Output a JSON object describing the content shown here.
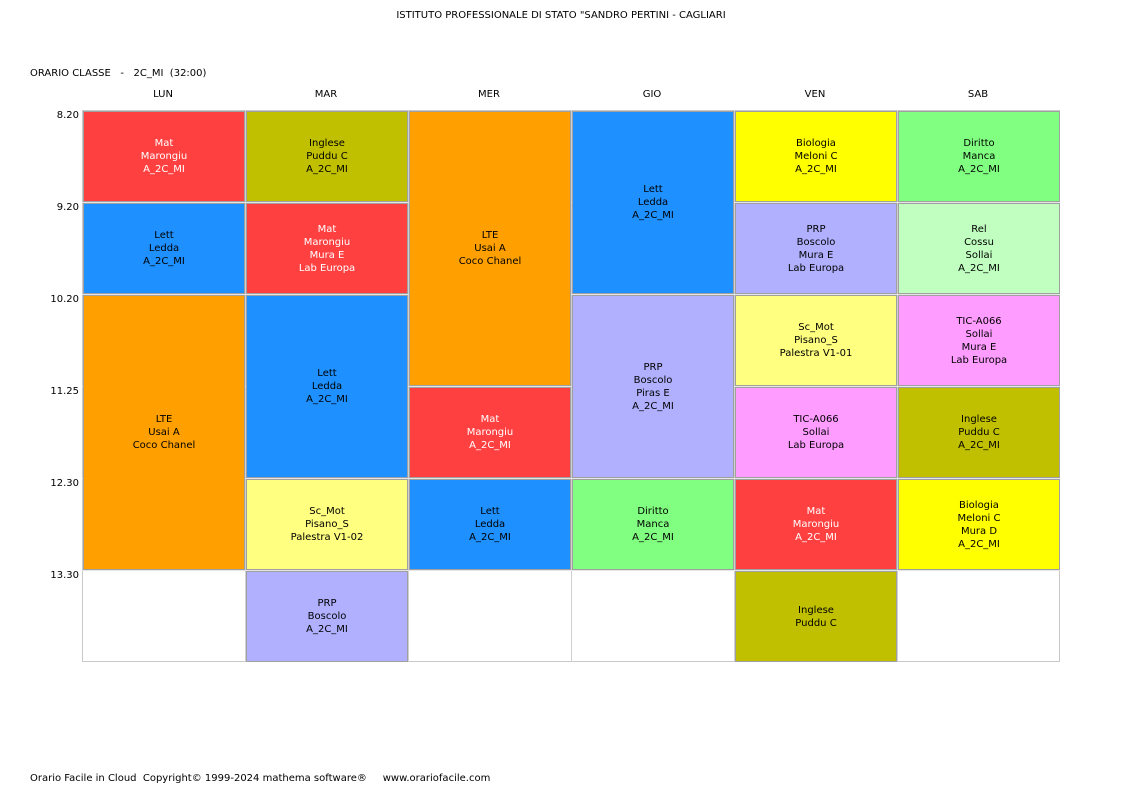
{
  "header": {
    "school": "ISTITUTO PROFESSIONALE DI STATO \"SANDRO PERTINI - CAGLIARI",
    "class_line": "ORARIO CLASSE   -   2C_MI  (32:00)"
  },
  "days": [
    "LUN",
    "MAR",
    "MER",
    "GIO",
    "VEN",
    "SAB"
  ],
  "times": [
    "8.20",
    "9.20",
    "10.20",
    "11.25",
    "12.30",
    "13.30"
  ],
  "colors": {
    "red": "#ff4040",
    "blue": "#1e90ff",
    "orange": "#ffa000",
    "olive": "#c0c000",
    "yellow": "#ffff00",
    "lightyellow": "#ffff80",
    "lavender": "#b0b0ff",
    "green": "#80ff80",
    "palegreen": "#c0ffc0",
    "pink": "#ff9cff"
  },
  "schedule": [
    {
      "day": 0,
      "slot": 0,
      "span": 1,
      "color": "red",
      "dark": true,
      "lines": [
        "Mat",
        "Marongiu",
        "A_2C_MI"
      ]
    },
    {
      "day": 0,
      "slot": 1,
      "span": 1,
      "color": "blue",
      "dark": false,
      "lines": [
        "Lett",
        "Ledda",
        "A_2C_MI"
      ]
    },
    {
      "day": 0,
      "slot": 2,
      "span": 3,
      "color": "orange",
      "dark": false,
      "lines": [
        "LTE",
        "Usai A",
        "Coco Chanel"
      ]
    },
    {
      "day": 1,
      "slot": 0,
      "span": 1,
      "color": "olive",
      "dark": false,
      "lines": [
        "Inglese",
        "Puddu C",
        "A_2C_MI"
      ]
    },
    {
      "day": 1,
      "slot": 1,
      "span": 1,
      "color": "red",
      "dark": true,
      "lines": [
        "Mat",
        "Marongiu",
        "Mura E",
        "Lab Europa"
      ]
    },
    {
      "day": 1,
      "slot": 2,
      "span": 2,
      "color": "blue",
      "dark": false,
      "lines": [
        "Lett",
        "Ledda",
        "A_2C_MI"
      ]
    },
    {
      "day": 1,
      "slot": 4,
      "span": 1,
      "color": "lightyellow",
      "dark": false,
      "lines": [
        "Sc_Mot",
        "Pisano_S",
        "Palestra V1-02"
      ]
    },
    {
      "day": 1,
      "slot": 5,
      "span": 1,
      "color": "lavender",
      "dark": false,
      "lines": [
        "PRP",
        "Boscolo",
        "A_2C_MI"
      ]
    },
    {
      "day": 2,
      "slot": 0,
      "span": 3,
      "color": "orange",
      "dark": false,
      "lines": [
        "LTE",
        "Usai A",
        "Coco Chanel"
      ]
    },
    {
      "day": 2,
      "slot": 3,
      "span": 1,
      "color": "red",
      "dark": true,
      "lines": [
        "Mat",
        "Marongiu",
        "A_2C_MI"
      ]
    },
    {
      "day": 2,
      "slot": 4,
      "span": 1,
      "color": "blue",
      "dark": false,
      "lines": [
        "Lett",
        "Ledda",
        "A_2C_MI"
      ]
    },
    {
      "day": 3,
      "slot": 0,
      "span": 2,
      "color": "blue",
      "dark": false,
      "lines": [
        "Lett",
        "Ledda",
        "A_2C_MI"
      ]
    },
    {
      "day": 3,
      "slot": 2,
      "span": 2,
      "color": "lavender",
      "dark": false,
      "lines": [
        "PRP",
        "Boscolo",
        "Piras E",
        "A_2C_MI"
      ]
    },
    {
      "day": 3,
      "slot": 4,
      "span": 1,
      "color": "green",
      "dark": false,
      "lines": [
        "Diritto",
        "Manca",
        "A_2C_MI"
      ]
    },
    {
      "day": 4,
      "slot": 0,
      "span": 1,
      "color": "yellow",
      "dark": false,
      "lines": [
        "Biologia",
        "Meloni C",
        "A_2C_MI"
      ]
    },
    {
      "day": 4,
      "slot": 1,
      "span": 1,
      "color": "lavender",
      "dark": false,
      "lines": [
        "PRP",
        "Boscolo",
        "Mura E",
        "Lab Europa"
      ]
    },
    {
      "day": 4,
      "slot": 2,
      "span": 1,
      "color": "lightyellow",
      "dark": false,
      "lines": [
        "Sc_Mot",
        "Pisano_S",
        "Palestra V1-01"
      ]
    },
    {
      "day": 4,
      "slot": 3,
      "span": 1,
      "color": "pink",
      "dark": false,
      "lines": [
        "TIC-A066",
        "Sollai",
        "Lab Europa"
      ]
    },
    {
      "day": 4,
      "slot": 4,
      "span": 1,
      "color": "red",
      "dark": true,
      "lines": [
        "Mat",
        "Marongiu",
        "A_2C_MI"
      ]
    },
    {
      "day": 4,
      "slot": 5,
      "span": 1,
      "color": "olive",
      "dark": false,
      "lines": [
        "Inglese",
        "Puddu C"
      ]
    },
    {
      "day": 5,
      "slot": 0,
      "span": 1,
      "color": "green",
      "dark": false,
      "lines": [
        "Diritto",
        "Manca",
        "A_2C_MI"
      ]
    },
    {
      "day": 5,
      "slot": 1,
      "span": 1,
      "color": "palegreen",
      "dark": false,
      "lines": [
        "Rel",
        "Cossu",
        "Sollai",
        "A_2C_MI"
      ]
    },
    {
      "day": 5,
      "slot": 2,
      "span": 1,
      "color": "pink",
      "dark": false,
      "lines": [
        "TIC-A066",
        "Sollai",
        "Mura E",
        "Lab Europa"
      ]
    },
    {
      "day": 5,
      "slot": 3,
      "span": 1,
      "color": "olive",
      "dark": false,
      "lines": [
        "Inglese",
        "Puddu C",
        "A_2C_MI"
      ]
    },
    {
      "day": 5,
      "slot": 4,
      "span": 1,
      "color": "yellow",
      "dark": false,
      "lines": [
        "Biologia",
        "Meloni C",
        "Mura D",
        "A_2C_MI"
      ]
    }
  ],
  "footer": "Orario Facile in Cloud  Copyright© 1999-2024 mathema software®     www.orariofacile.com"
}
